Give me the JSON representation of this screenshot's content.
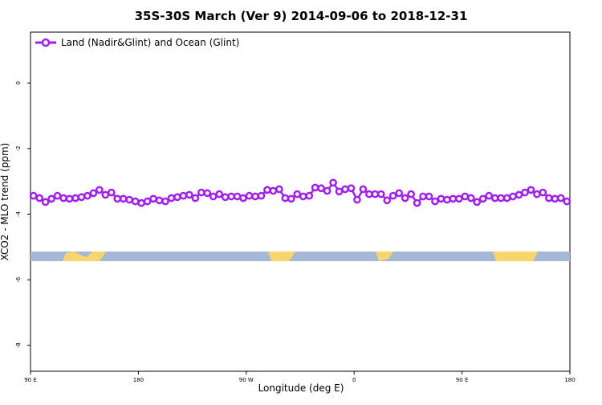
{
  "chart_data": {
    "type": "line",
    "title": "35S-30S March (Ver 9)   2014-09-06 to 2018-12-31",
    "xlabel": "Longitude (deg E)",
    "ylabel": "XCO2 - MLO trend (ppm)",
    "xlim": [
      90,
      540
    ],
    "ylim": [
      -8.79,
      1.55
    ],
    "xticks": [
      {
        "value": 90,
        "label": "90 E"
      },
      180,
      {
        "value": 270,
        "label": "90 W"
      },
      {
        "value": 360,
        "label": "0"
      },
      {
        "value": 450,
        "label": "90 E"
      },
      {
        "value": 540,
        "label": "180"
      }
    ],
    "yticks": [
      0,
      -2,
      -4,
      -6,
      -8
    ],
    "grid": false,
    "legend": "top-left",
    "x": [
      92.5,
      97.5,
      102.5,
      107.5,
      112.5,
      117.5,
      122.5,
      127.5,
      132.5,
      137.5,
      142.5,
      147.5,
      152.5,
      157.5,
      162.5,
      167.5,
      172.5,
      177.5,
      182.5,
      187.5,
      192.5,
      197.5,
      202.5,
      207.5,
      212.5,
      217.5,
      222.5,
      227.5,
      232.5,
      237.5,
      242.5,
      247.5,
      252.5,
      257.5,
      262.5,
      267.5,
      272.5,
      277.5,
      282.5,
      287.5,
      292.5,
      297.5,
      302.5,
      307.5,
      312.5,
      317.5,
      322.5,
      327.5,
      332.5,
      337.5,
      342.5,
      347.5,
      352.5,
      357.5,
      362.5,
      367.5,
      372.5,
      377.5,
      382.5,
      387.5,
      392.5,
      397.5,
      402.5,
      407.5,
      412.5,
      417.5,
      422.5,
      427.5,
      432.5,
      437.5,
      442.5,
      447.5,
      452.5,
      457.5,
      462.5,
      467.5,
      472.5,
      477.5,
      482.5,
      487.5,
      492.5,
      497.5,
      502.5,
      507.5,
      512.5,
      517.5,
      522.5,
      527.5,
      532.5,
      537.5
    ],
    "series": [
      {
        "name": "Land (Nadir&Glint) and Ocean (Glint)",
        "color": "#a020f0",
        "values": [
          -3.44,
          -3.51,
          -3.63,
          -3.53,
          -3.44,
          -3.51,
          -3.53,
          -3.51,
          -3.48,
          -3.44,
          -3.36,
          -3.26,
          -3.41,
          -3.34,
          -3.53,
          -3.53,
          -3.56,
          -3.61,
          -3.66,
          -3.61,
          -3.53,
          -3.58,
          -3.61,
          -3.51,
          -3.48,
          -3.44,
          -3.41,
          -3.51,
          -3.34,
          -3.36,
          -3.46,
          -3.39,
          -3.48,
          -3.46,
          -3.46,
          -3.51,
          -3.44,
          -3.46,
          -3.44,
          -3.26,
          -3.29,
          -3.24,
          -3.51,
          -3.53,
          -3.39,
          -3.46,
          -3.44,
          -3.19,
          -3.21,
          -3.29,
          -3.04,
          -3.31,
          -3.24,
          -3.21,
          -3.56,
          -3.24,
          -3.39,
          -3.39,
          -3.39,
          -3.58,
          -3.44,
          -3.36,
          -3.51,
          -3.39,
          -3.66,
          -3.46,
          -3.46,
          -3.61,
          -3.53,
          -3.56,
          -3.53,
          -3.53,
          -3.46,
          -3.51,
          -3.63,
          -3.53,
          -3.44,
          -3.51,
          -3.51,
          -3.51,
          -3.46,
          -3.41,
          -3.34,
          -3.26,
          -3.39,
          -3.34,
          -3.51,
          -3.53,
          -3.51,
          -3.61
        ]
      }
    ]
  }
}
